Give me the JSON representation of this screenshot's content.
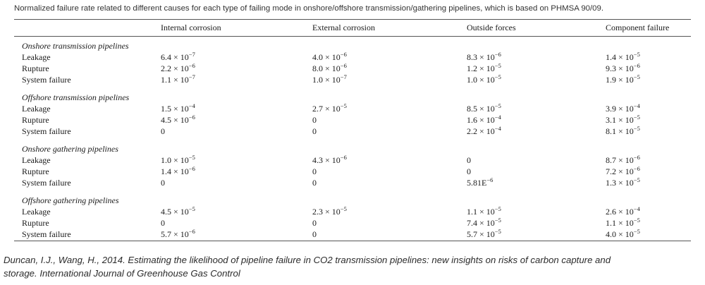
{
  "caption": "Normalized failure rate related to different causes for each type of failing mode in onshore/offshore transmission/gathering pipelines, which is based on PHMSA 90/09.",
  "columns": [
    "",
    "Internal corrosion",
    "External corrosion",
    "Outside forces",
    "Component failure"
  ],
  "groups": [
    {
      "title": "Onshore transmission pipelines",
      "rows": [
        {
          "label": "Leakage",
          "values": [
            {
              "base": "6.4 × 10",
              "exp": "−7"
            },
            {
              "base": "4.0 × 10",
              "exp": "−6"
            },
            {
              "base": "8.3 × 10",
              "exp": "−6"
            },
            {
              "base": "1.4 × 10",
              "exp": "−5"
            }
          ]
        },
        {
          "label": "Rupture",
          "values": [
            {
              "base": "2.2 × 10",
              "exp": "−6"
            },
            {
              "base": "8.0 × 10",
              "exp": "−6"
            },
            {
              "base": "1.2 × 10",
              "exp": "−5"
            },
            {
              "base": "9.3 × 10",
              "exp": "−6"
            }
          ]
        },
        {
          "label": "System failure",
          "values": [
            {
              "base": "1.1 × 10",
              "exp": "−7"
            },
            {
              "base": "1.0 × 10",
              "exp": "−7"
            },
            {
              "base": "1.0 × 10",
              "exp": "−5"
            },
            {
              "base": "1.9 × 10",
              "exp": "−5"
            }
          ]
        }
      ]
    },
    {
      "title": "Offshore transmission pipelines",
      "rows": [
        {
          "label": "Leakage",
          "values": [
            {
              "base": "1.5 × 10",
              "exp": "−4"
            },
            {
              "base": "2.7 × 10",
              "exp": "−5"
            },
            {
              "base": "8.5 × 10",
              "exp": "−5"
            },
            {
              "base": "3.9 × 10",
              "exp": "−4"
            }
          ]
        },
        {
          "label": "Rupture",
          "values": [
            {
              "base": "4.5 × 10",
              "exp": "−6"
            },
            {
              "base": "0",
              "exp": ""
            },
            {
              "base": "1.6 × 10",
              "exp": "−4"
            },
            {
              "base": "3.1 × 10",
              "exp": "−5"
            }
          ]
        },
        {
          "label": "System failure",
          "values": [
            {
              "base": "0",
              "exp": ""
            },
            {
              "base": "0",
              "exp": ""
            },
            {
              "base": "2.2 × 10",
              "exp": "−4"
            },
            {
              "base": "8.1 × 10",
              "exp": "−5"
            }
          ]
        }
      ]
    },
    {
      "title": "Onshore gathering pipelines",
      "rows": [
        {
          "label": "Leakage",
          "values": [
            {
              "base": "1.0 × 10",
              "exp": "−5"
            },
            {
              "base": "4.3 × 10",
              "exp": "−6"
            },
            {
              "base": "0",
              "exp": ""
            },
            {
              "base": "8.7 × 10",
              "exp": "−6"
            }
          ]
        },
        {
          "label": "Rupture",
          "values": [
            {
              "base": "1.4 × 10",
              "exp": "−6"
            },
            {
              "base": "0",
              "exp": ""
            },
            {
              "base": "0",
              "exp": ""
            },
            {
              "base": "7.2 × 10",
              "exp": "−6"
            }
          ]
        },
        {
          "label": "System failure",
          "values": [
            {
              "base": "0",
              "exp": ""
            },
            {
              "base": "0",
              "exp": ""
            },
            {
              "base": "5.81E",
              "exp": "−6"
            },
            {
              "base": "1.3 × 10",
              "exp": "−5"
            }
          ]
        }
      ]
    },
    {
      "title": "Offshore gathering pipelines",
      "rows": [
        {
          "label": "Leakage",
          "values": [
            {
              "base": "4.5 × 10",
              "exp": "−5"
            },
            {
              "base": "2.3 × 10",
              "exp": "−5"
            },
            {
              "base": "1.1 × 10",
              "exp": "−5"
            },
            {
              "base": "2.6 × 10",
              "exp": "−4"
            }
          ]
        },
        {
          "label": "Rupture",
          "values": [
            {
              "base": "0",
              "exp": ""
            },
            {
              "base": "0",
              "exp": ""
            },
            {
              "base": "7.4 × 10",
              "exp": "−5"
            },
            {
              "base": "1.1 × 10",
              "exp": "−5"
            }
          ]
        },
        {
          "label": "System failure",
          "values": [
            {
              "base": "5.7 × 10",
              "exp": "−6"
            },
            {
              "base": "0",
              "exp": ""
            },
            {
              "base": "5.7 × 10",
              "exp": "−5"
            },
            {
              "base": "4.0 × 10",
              "exp": "−5"
            }
          ]
        }
      ]
    }
  ],
  "citation": {
    "line1": "Duncan, I.J., Wang, H., 2014. Estimating the likelihood of pipeline failure in CO2 transmission pipelines: new insights on risks of carbon capture and",
    "line2": "storage. International Journal of Greenhouse Gas Control"
  }
}
